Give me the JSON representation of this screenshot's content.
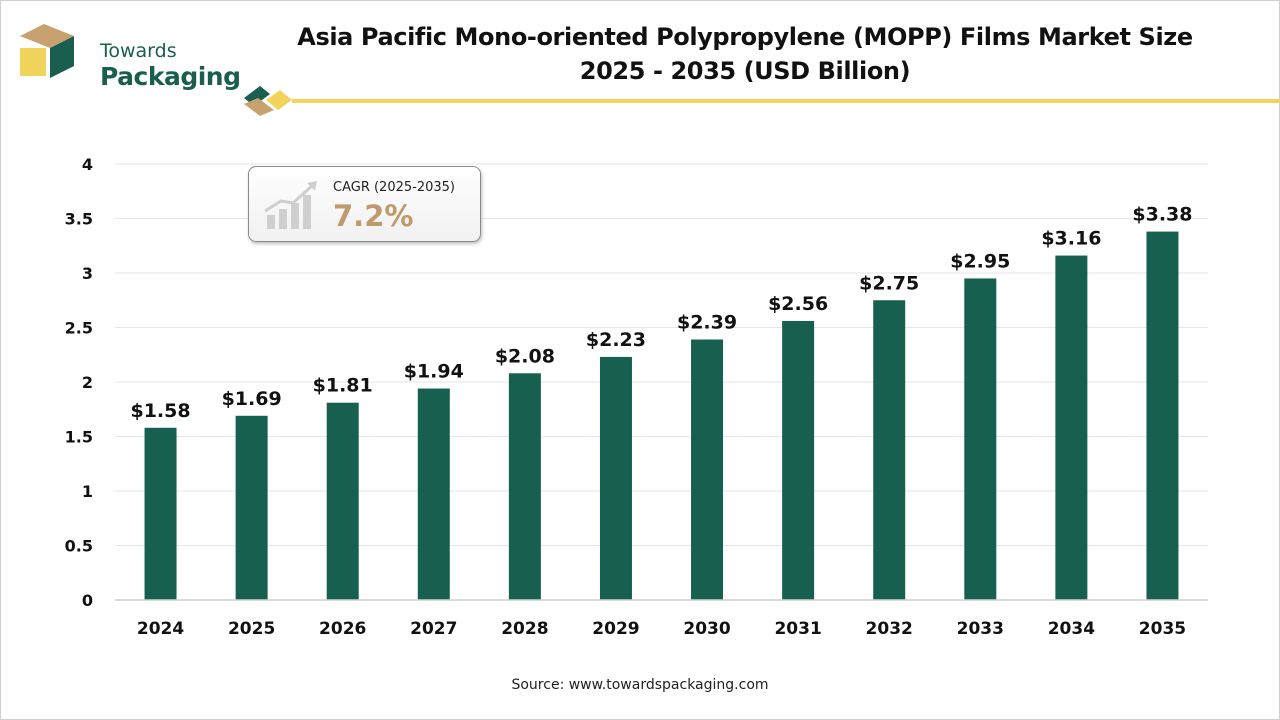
{
  "brand": {
    "line1": "Towards",
    "line2": "Packaging"
  },
  "title": {
    "line1": "Asia Pacific Mono-oriented Polypropylene (MOPP) Films Market Size",
    "line2": "2025 - 2035 (USD Billion)"
  },
  "cagr": {
    "label": "CAGR (2025-2035)",
    "value": "7.2%"
  },
  "source": "Source: www.towardspackaging.com",
  "colors": {
    "bar": "#17604f",
    "accent": "#f2d45c",
    "cagr": "#c19a6b",
    "logo_tan": "#c8a26e",
    "logo_green": "#1a5e50"
  },
  "chart_data": {
    "type": "bar",
    "title": "Asia Pacific Mono-oriented Polypropylene (MOPP) Films Market Size 2025 - 2035 (USD Billion)",
    "xlabel": "",
    "ylabel": "",
    "categories": [
      "2024",
      "2025",
      "2026",
      "2027",
      "2028",
      "2029",
      "2030",
      "2031",
      "2032",
      "2033",
      "2034",
      "2035"
    ],
    "values": [
      1.58,
      1.69,
      1.81,
      1.94,
      2.08,
      2.23,
      2.39,
      2.56,
      2.75,
      2.95,
      3.16,
      3.38
    ],
    "value_labels": [
      "$1.58",
      "$1.69",
      "$1.81",
      "$1.94",
      "$2.08",
      "$2.23",
      "$2.39",
      "$2.56",
      "$2.75",
      "$2.95",
      "$3.16",
      "$3.38"
    ],
    "ylim": [
      0,
      4
    ],
    "yticks": [
      "0",
      "0.5",
      "1",
      "1.5",
      "2",
      "2.5",
      "3",
      "3.5",
      "4"
    ],
    "grid": true,
    "legend": "none"
  }
}
